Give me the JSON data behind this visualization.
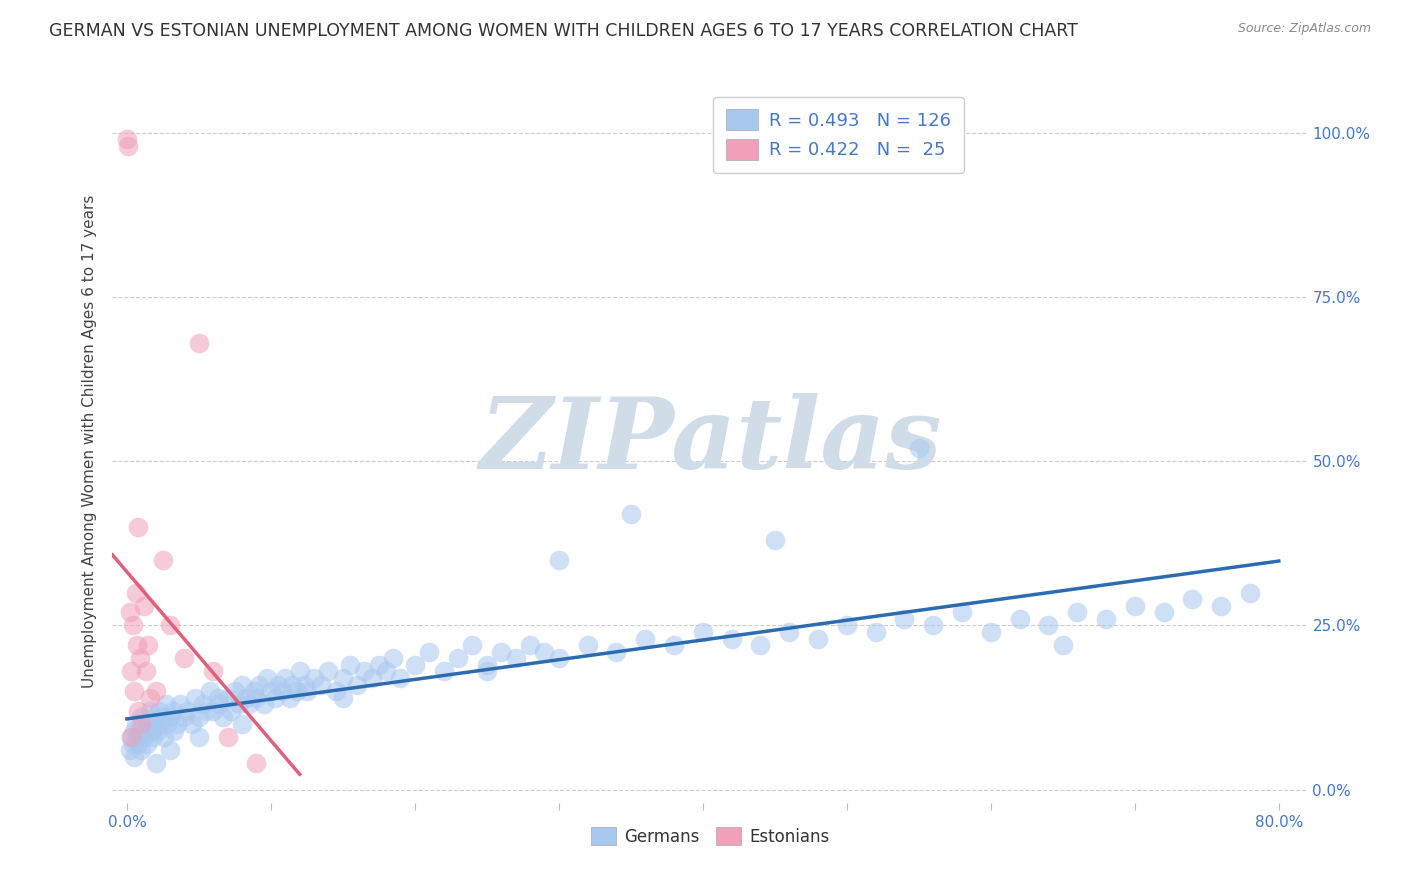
{
  "title": "GERMAN VS ESTONIAN UNEMPLOYMENT AMONG WOMEN WITH CHILDREN AGES 6 TO 17 YEARS CORRELATION CHART",
  "source": "Source: ZipAtlas.com",
  "ylabel": "Unemployment Among Women with Children Ages 6 to 17 years",
  "xlim": [
    -0.01,
    0.82
  ],
  "ylim": [
    -0.02,
    1.08
  ],
  "xtick_positions": [
    0.0,
    0.1,
    0.2,
    0.3,
    0.4,
    0.5,
    0.6,
    0.7,
    0.8
  ],
  "xtick_labels": [
    "0.0%",
    "",
    "",
    "",
    "",
    "",
    "",
    "",
    "80.0%"
  ],
  "ytick_right_vals": [
    0.0,
    0.25,
    0.5,
    0.75,
    1.0
  ],
  "ytick_right_labels": [
    "0.0%",
    "25.0%",
    "50.0%",
    "75.0%",
    "100.0%"
  ],
  "german_R": 0.493,
  "german_N": 126,
  "estonian_R": 0.422,
  "estonian_N": 25,
  "blue_scatter_color": "#A8C8F0",
  "pink_scatter_color": "#F0A0B8",
  "blue_line_color": "#2B6CB0",
  "pink_line_color": "#E0607A",
  "legend_text_color": "#4477CC",
  "grid_color": "#CCCCCC",
  "watermark_text": "ZIPatlas",
  "watermark_color": "#D0DCE8",
  "background_color": "#FFFFFF",
  "title_fontsize": 12.5,
  "label_fontsize": 11,
  "tick_fontsize": 11,
  "scatter_size": 200,
  "scatter_alpha": 0.55,
  "german_x": [
    0.002,
    0.003,
    0.004,
    0.005,
    0.005,
    0.006,
    0.007,
    0.008,
    0.009,
    0.01,
    0.01,
    0.012,
    0.013,
    0.014,
    0.015,
    0.016,
    0.017,
    0.018,
    0.019,
    0.02,
    0.021,
    0.022,
    0.023,
    0.025,
    0.026,
    0.027,
    0.028,
    0.03,
    0.032,
    0.033,
    0.035,
    0.037,
    0.04,
    0.042,
    0.045,
    0.047,
    0.05,
    0.053,
    0.055,
    0.058,
    0.06,
    0.063,
    0.065,
    0.067,
    0.07,
    0.072,
    0.075,
    0.078,
    0.08,
    0.083,
    0.085,
    0.088,
    0.09,
    0.092,
    0.095,
    0.097,
    0.1,
    0.103,
    0.105,
    0.108,
    0.11,
    0.113,
    0.115,
    0.118,
    0.12,
    0.123,
    0.125,
    0.13,
    0.135,
    0.14,
    0.145,
    0.15,
    0.155,
    0.16,
    0.165,
    0.17,
    0.175,
    0.18,
    0.185,
    0.19,
    0.2,
    0.21,
    0.22,
    0.23,
    0.24,
    0.25,
    0.26,
    0.27,
    0.28,
    0.29,
    0.3,
    0.32,
    0.34,
    0.36,
    0.38,
    0.4,
    0.42,
    0.44,
    0.46,
    0.48,
    0.5,
    0.52,
    0.54,
    0.56,
    0.58,
    0.6,
    0.62,
    0.64,
    0.66,
    0.68,
    0.7,
    0.72,
    0.74,
    0.76,
    0.78,
    0.3,
    0.35,
    0.45,
    0.55,
    0.65,
    0.25,
    0.15,
    0.08,
    0.05,
    0.03,
    0.02
  ],
  "german_y": [
    0.06,
    0.08,
    0.07,
    0.09,
    0.05,
    0.1,
    0.08,
    0.07,
    0.09,
    0.06,
    0.11,
    0.08,
    0.09,
    0.07,
    0.1,
    0.12,
    0.09,
    0.08,
    0.11,
    0.1,
    0.09,
    0.12,
    0.1,
    0.11,
    0.08,
    0.13,
    0.1,
    0.11,
    0.12,
    0.09,
    0.1,
    0.13,
    0.11,
    0.12,
    0.1,
    0.14,
    0.11,
    0.13,
    0.12,
    0.15,
    0.12,
    0.14,
    0.13,
    0.11,
    0.14,
    0.12,
    0.15,
    0.13,
    0.16,
    0.14,
    0.13,
    0.15,
    0.14,
    0.16,
    0.13,
    0.17,
    0.15,
    0.14,
    0.16,
    0.15,
    0.17,
    0.14,
    0.16,
    0.15,
    0.18,
    0.16,
    0.15,
    0.17,
    0.16,
    0.18,
    0.15,
    0.17,
    0.19,
    0.16,
    0.18,
    0.17,
    0.19,
    0.18,
    0.2,
    0.17,
    0.19,
    0.21,
    0.18,
    0.2,
    0.22,
    0.19,
    0.21,
    0.2,
    0.22,
    0.21,
    0.2,
    0.22,
    0.21,
    0.23,
    0.22,
    0.24,
    0.23,
    0.22,
    0.24,
    0.23,
    0.25,
    0.24,
    0.26,
    0.25,
    0.27,
    0.24,
    0.26,
    0.25,
    0.27,
    0.26,
    0.28,
    0.27,
    0.29,
    0.28,
    0.3,
    0.35,
    0.42,
    0.38,
    0.52,
    0.22,
    0.18,
    0.14,
    0.1,
    0.08,
    0.06,
    0.04
  ],
  "estonian_x": [
    0.0,
    0.001,
    0.002,
    0.003,
    0.003,
    0.004,
    0.005,
    0.006,
    0.007,
    0.008,
    0.008,
    0.009,
    0.01,
    0.012,
    0.013,
    0.015,
    0.016,
    0.02,
    0.025,
    0.03,
    0.04,
    0.05,
    0.06,
    0.07,
    0.09
  ],
  "estonian_y": [
    0.99,
    0.98,
    0.27,
    0.18,
    0.08,
    0.25,
    0.15,
    0.3,
    0.22,
    0.12,
    0.4,
    0.2,
    0.1,
    0.28,
    0.18,
    0.22,
    0.14,
    0.15,
    0.35,
    0.25,
    0.2,
    0.68,
    0.18,
    0.08,
    0.04
  ]
}
